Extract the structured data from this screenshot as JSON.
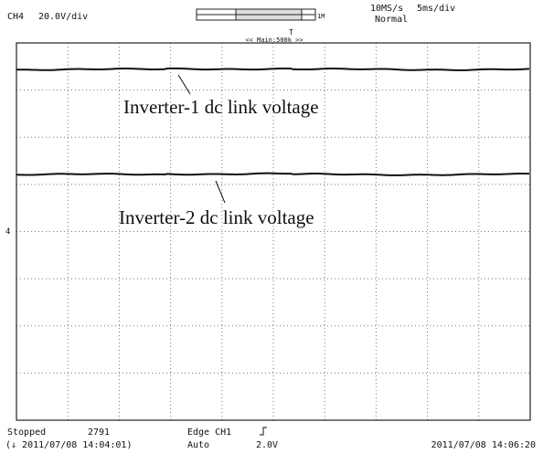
{
  "header": {
    "channel": "CH4",
    "scale": "20.0V/div",
    "zoom_marker": "1M",
    "sample_rate": "10MS/s",
    "time_scale": "5ms/div",
    "mode": "Normal",
    "main_label": "<< Main:500k >>"
  },
  "annotations": [
    "Inverter-1 dc link voltage",
    "Inverter-2 dc link voltage"
  ],
  "footer": {
    "status": "Stopped",
    "count": "2791",
    "start_time": "(↓ 2011/07/08 14:04:01)",
    "trigger": "Edge CH1",
    "trigger_mode": "Auto",
    "trigger_level": "2.0V",
    "end_time": "2011/07/08 14:06:20"
  }
}
